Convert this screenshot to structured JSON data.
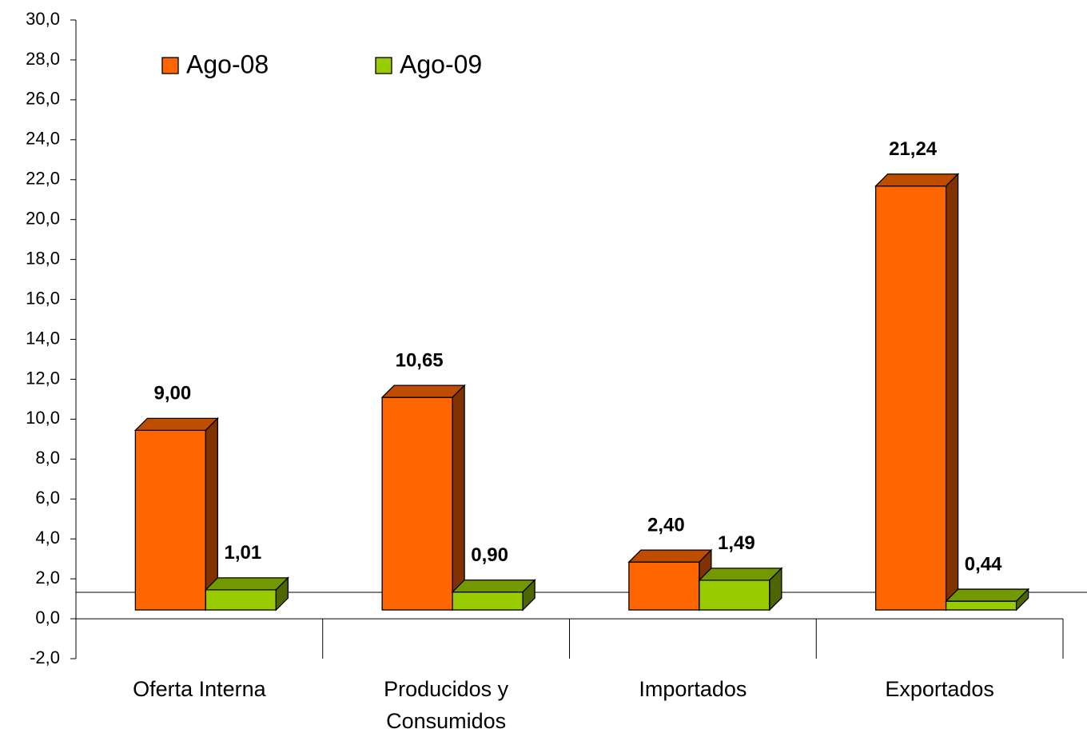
{
  "chart_data": {
    "type": "bar3d",
    "categories": [
      "Oferta Interna",
      "Producidos y Consumidos",
      "Importados",
      "Exportados"
    ],
    "series": [
      {
        "name": "Ago-08",
        "color": "#ff6600",
        "values": [
          9.0,
          10.65,
          2.4,
          21.24
        ],
        "value_labels": [
          "9,00",
          "10,65",
          "2,40",
          "21,24"
        ]
      },
      {
        "name": "Ago-09",
        "color": "#99cc00",
        "values": [
          1.01,
          0.9,
          1.49,
          0.44
        ],
        "value_labels": [
          "1,01",
          "0,90",
          "1,49",
          "0,44"
        ]
      }
    ],
    "ylim": [
      -2,
      30
    ],
    "yticks": [
      {
        "value": -2,
        "label": "-2,0"
      },
      {
        "value": 0,
        "label": "0,0"
      },
      {
        "value": 2,
        "label": "2,0"
      },
      {
        "value": 4,
        "label": "4,0"
      },
      {
        "value": 6,
        "label": "6,0"
      },
      {
        "value": 8,
        "label": "8,0"
      },
      {
        "value": 10,
        "label": "10,0"
      },
      {
        "value": 12,
        "label": "12,0"
      },
      {
        "value": 14,
        "label": "14,0"
      },
      {
        "value": 16,
        "label": "16,0"
      },
      {
        "value": 18,
        "label": "18,0"
      },
      {
        "value": 20,
        "label": "20,0"
      },
      {
        "value": 22,
        "label": "22,0"
      },
      {
        "value": 24,
        "label": "24,0"
      },
      {
        "value": 26,
        "label": "26,0"
      },
      {
        "value": 28,
        "label": "28,0"
      },
      {
        "value": 30,
        "label": "30,0"
      }
    ],
    "legend": "top-left"
  }
}
